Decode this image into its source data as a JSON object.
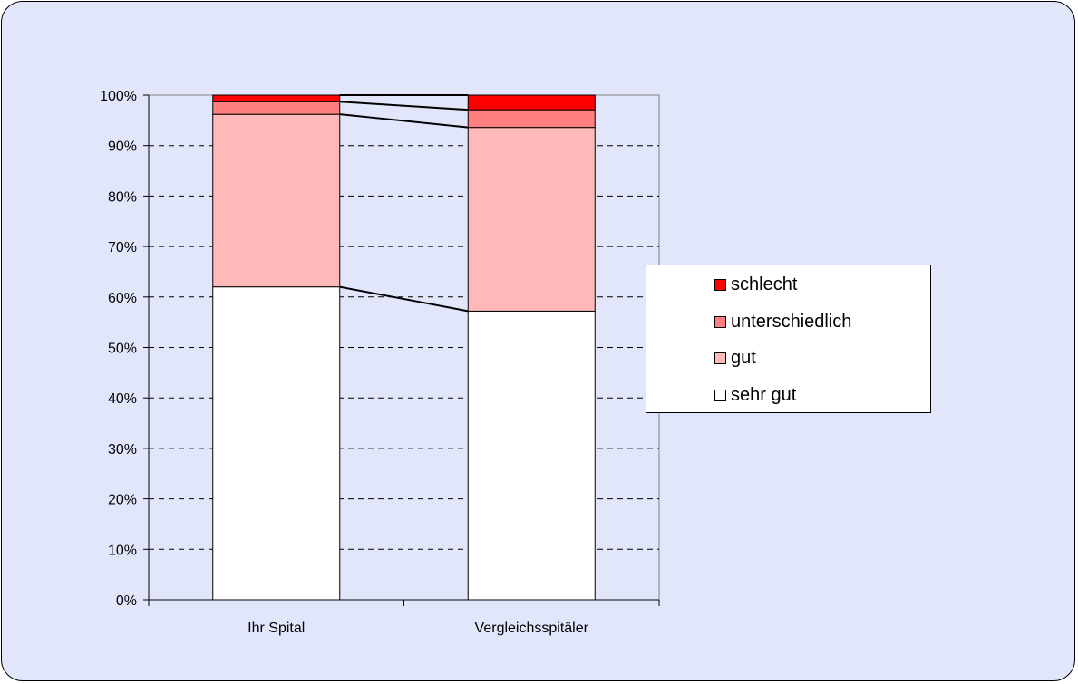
{
  "chart_data": {
    "type": "bar",
    "stacked": true,
    "percent_stacked": true,
    "categories": [
      "Ihr Spital",
      "Vergleichsspitäler"
    ],
    "series": [
      {
        "name": "sehr gut",
        "values": [
          62.0,
          57.2
        ],
        "color": "#ffffff"
      },
      {
        "name": "gut",
        "values": [
          34.2,
          36.4
        ],
        "color": "#ffb9b9"
      },
      {
        "name": "unterschiedlich",
        "values": [
          2.5,
          3.5
        ],
        "color": "#ff7f7f"
      },
      {
        "name": "schlecht",
        "values": [
          1.3,
          2.9
        ],
        "color": "#ff0000"
      }
    ],
    "title": "",
    "xlabel": "",
    "ylabel": "",
    "ylim": [
      0,
      100
    ],
    "yticks": [
      "0%",
      "10%",
      "20%",
      "30%",
      "40%",
      "50%",
      "60%",
      "70%",
      "80%",
      "90%",
      "100%"
    ],
    "grid": "horizontal dashed",
    "series_lines": true,
    "legend": {
      "position": "right",
      "order": [
        "schlecht",
        "unterschiedlich",
        "gut",
        "sehr gut"
      ]
    }
  }
}
